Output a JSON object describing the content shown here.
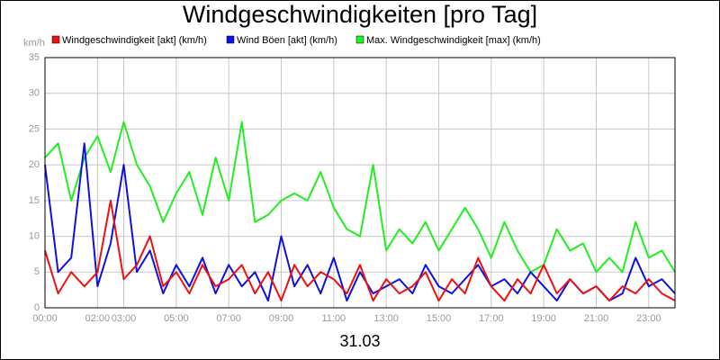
{
  "chart_data": {
    "type": "line",
    "title": "Windgeschwindigkeiten [pro Tag]",
    "subtitle": "31.03",
    "y_label": "km/h",
    "x": [
      0,
      0.5,
      1,
      1.5,
      2,
      2.5,
      3,
      3.5,
      4,
      4.5,
      5,
      5.5,
      6,
      6.5,
      7,
      7.5,
      8,
      8.5,
      9,
      9.5,
      10,
      10.5,
      11,
      11.5,
      12,
      12.5,
      13,
      13.5,
      14,
      14.5,
      15,
      15.5,
      16,
      16.5,
      17,
      17.5,
      18,
      18.5,
      19,
      19.5,
      20,
      20.5,
      21,
      21.5,
      22,
      22.5,
      23,
      23.5,
      24
    ],
    "series": [
      {
        "name": "Windgeschwindigkeit [akt] (km/h)",
        "color": "#ee1111",
        "values": [
          8,
          2,
          5,
          3,
          5,
          15,
          4,
          6,
          10,
          3,
          5,
          2,
          6,
          3,
          4,
          6,
          2,
          5,
          1,
          6,
          3,
          5,
          4,
          2,
          6,
          1,
          4,
          2,
          3,
          5,
          1,
          4,
          2,
          7,
          3,
          1,
          4,
          2,
          6,
          2,
          4,
          2,
          3,
          1,
          3,
          2,
          4,
          2,
          1
        ]
      },
      {
        "name": "Wind Böen [akt] (km/h)",
        "color": "#1111dd",
        "values": [
          20,
          5,
          7,
          23,
          3,
          9,
          20,
          5,
          8,
          2,
          6,
          3,
          7,
          2,
          6,
          3,
          5,
          1,
          10,
          3,
          6,
          2,
          7,
          1,
          5,
          2,
          3,
          4,
          2,
          6,
          3,
          2,
          4,
          6,
          3,
          4,
          2,
          5,
          3,
          1,
          4,
          2,
          3,
          1,
          2,
          7,
          3,
          4,
          2
        ]
      },
      {
        "name": "Max. Windgeschwindigkeit [max] (km/h)",
        "color": "#22ee22",
        "values": [
          21,
          23,
          15,
          21,
          24,
          19,
          26,
          20,
          17,
          12,
          16,
          19,
          13,
          21,
          15,
          26,
          12,
          13,
          15,
          16,
          15,
          19,
          14,
          11,
          10,
          20,
          8,
          11,
          9,
          12,
          8,
          11,
          14,
          11,
          7,
          12,
          8,
          5,
          6,
          11,
          8,
          9,
          5,
          7,
          5,
          12,
          7,
          8,
          5
        ]
      }
    ],
    "xlim": [
      0,
      24
    ],
    "xticks": [
      {
        "value": 0,
        "label": "00:00"
      },
      {
        "value": 2,
        "label": "02:00"
      },
      {
        "value": 3,
        "label": "03:00"
      },
      {
        "value": 5,
        "label": "05:00"
      },
      {
        "value": 7,
        "label": "07:00"
      },
      {
        "value": 9,
        "label": "09:00"
      },
      {
        "value": 11,
        "label": "11:00"
      },
      {
        "value": 13,
        "label": "13:00"
      },
      {
        "value": 15,
        "label": "15:00"
      },
      {
        "value": 17,
        "label": "17:00"
      },
      {
        "value": 19,
        "label": "19:00"
      },
      {
        "value": 21,
        "label": "21:00"
      },
      {
        "value": 23,
        "label": "23:00"
      }
    ],
    "ylim": [
      0,
      35
    ],
    "yticks": [
      0,
      5,
      10,
      15,
      20,
      25,
      30,
      35
    ],
    "grid": true
  }
}
